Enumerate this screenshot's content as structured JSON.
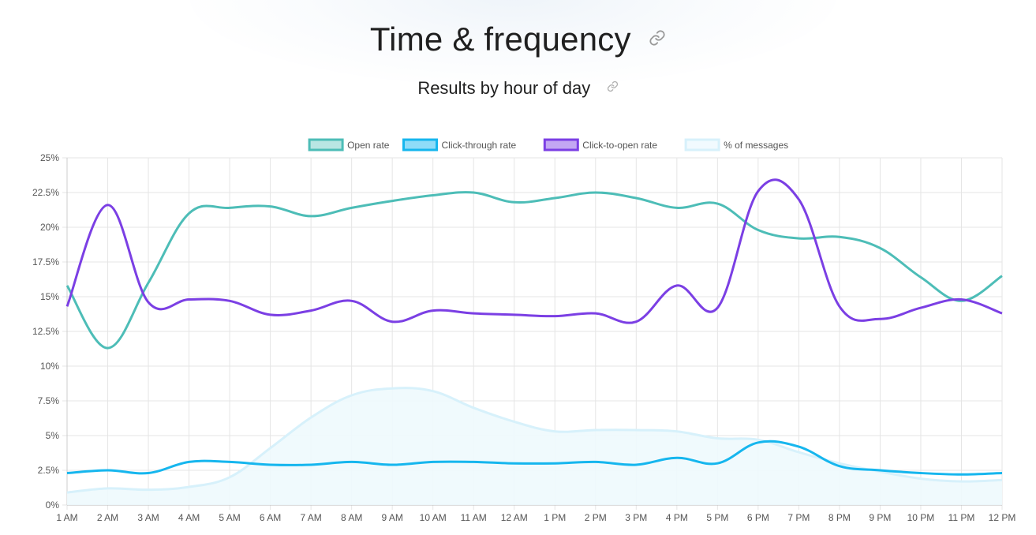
{
  "page": {
    "title": "Time & frequency",
    "subtitle": "Results by hour of day"
  },
  "icons": {
    "title_link": "link-icon",
    "subtitle_link": "link-icon"
  },
  "colors": {
    "open_rate": "#4dbdb7",
    "click_through_rate": "#16b6ee",
    "click_to_open_rate": "#7b3fe4",
    "pct_messages": "#d7f1fb",
    "grid": "#e5e5e5",
    "axis_text": "#555555"
  },
  "chart_data": {
    "type": "line",
    "title": "Results by hour of day",
    "xlabel": "",
    "ylabel": "",
    "ylim": [
      0,
      25
    ],
    "grid": true,
    "legend_position": "top-center",
    "y_ticks": [
      "0%",
      "2.5%",
      "5%",
      "7.5%",
      "10%",
      "12.5%",
      "15%",
      "17.5%",
      "20%",
      "22.5%",
      "25%"
    ],
    "categories": [
      "1 AM",
      "2 AM",
      "3 AM",
      "4 AM",
      "5 AM",
      "6 AM",
      "7 AM",
      "8 AM",
      "9 AM",
      "10 AM",
      "11 AM",
      "12 AM",
      "1 PM",
      "2 PM",
      "3 PM",
      "4 PM",
      "5 PM",
      "6 PM",
      "7 PM",
      "8 PM",
      "9 PM",
      "10 PM",
      "11 PM",
      "12 PM"
    ],
    "series": [
      {
        "name": "Open rate",
        "style": "line",
        "values": [
          15.8,
          11.3,
          16.0,
          21.0,
          21.4,
          21.5,
          20.8,
          21.4,
          21.9,
          22.3,
          22.5,
          21.8,
          22.1,
          22.5,
          22.1,
          21.4,
          21.7,
          19.8,
          19.2,
          19.3,
          18.5,
          16.4,
          14.7,
          16.5
        ]
      },
      {
        "name": "Click-through rate",
        "style": "line",
        "values": [
          2.3,
          2.5,
          2.3,
          3.1,
          3.1,
          2.9,
          2.9,
          3.1,
          2.9,
          3.1,
          3.1,
          3.0,
          3.0,
          3.1,
          2.9,
          3.4,
          3.0,
          4.5,
          4.2,
          2.8,
          2.5,
          2.3,
          2.2,
          2.3
        ]
      },
      {
        "name": "Click-to-open rate",
        "style": "line",
        "values": [
          14.3,
          21.6,
          14.6,
          14.8,
          14.7,
          13.7,
          14.0,
          14.7,
          13.2,
          14.0,
          13.8,
          13.7,
          13.6,
          13.8,
          13.2,
          15.8,
          14.2,
          22.6,
          22.0,
          14.3,
          13.4,
          14.2,
          14.8,
          13.8
        ]
      },
      {
        "name": "% of messages",
        "style": "area",
        "values": [
          0.9,
          1.2,
          1.1,
          1.3,
          2.0,
          4.1,
          6.3,
          7.9,
          8.4,
          8.2,
          7.0,
          6.0,
          5.3,
          5.4,
          5.4,
          5.3,
          4.8,
          4.7,
          3.8,
          3.0,
          2.4,
          1.9,
          1.7,
          1.8
        ]
      }
    ]
  }
}
